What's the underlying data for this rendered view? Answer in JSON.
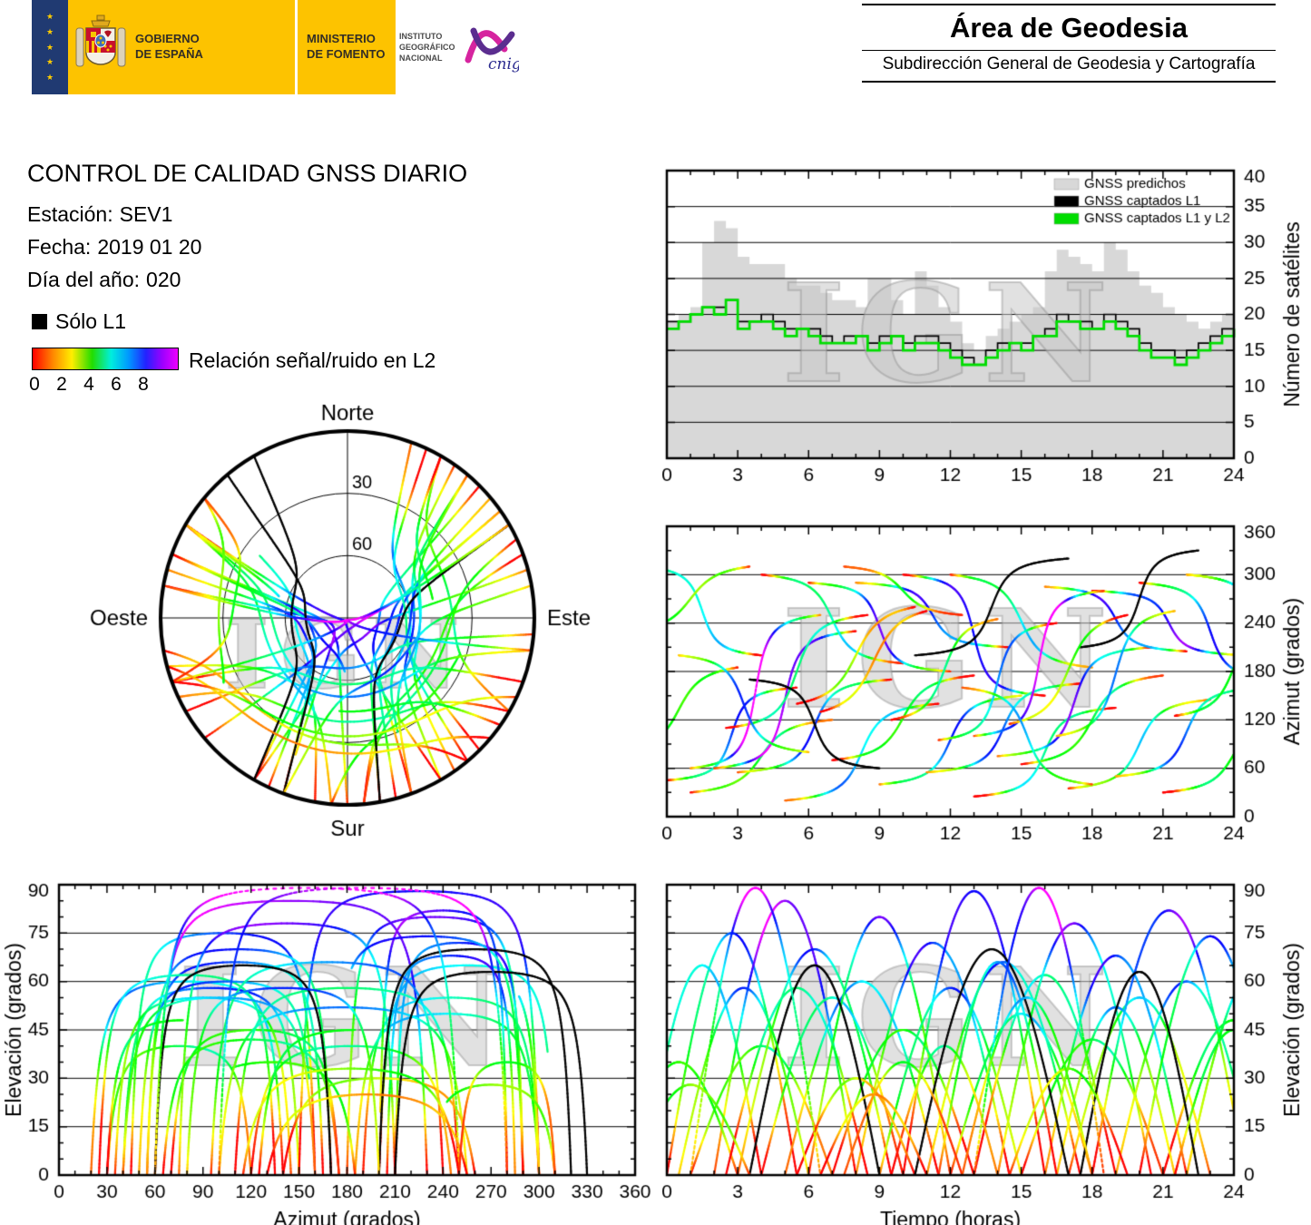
{
  "banner": {
    "eu_stars": "★\n★\n★\n★\n★",
    "gobierno_label": "GOBIERNO\nDE ESPAÑA",
    "ministerio_label": "MINISTERIO\nDE FOMENTO",
    "instituto_label": "INSTITUTO\nGEOGRÁFICO\nNACIONAL",
    "cnig_label": "cnig"
  },
  "area_header": {
    "title": "Área de Geodesia",
    "subtitle": "Subdirección General de Geodesia y Cartografía"
  },
  "report": {
    "title": "CONTROL DE CALIDAD GNSS DIARIO",
    "station_label": "Estación:",
    "station_value": "SEV1",
    "date_label": "Fecha:",
    "date_value": "2019 01 20",
    "doy_label": "Día del año:",
    "doy_value": "020"
  },
  "legend": {
    "solo_l1": "Sólo L1",
    "snr_label": "Relación señal/ruido en L2",
    "snr_ticks": [
      0,
      2,
      4,
      6,
      8
    ]
  },
  "chart_data": {
    "watermark": "IGN",
    "snr_colormap": {
      "min": 0,
      "max": 9,
      "hue_start": 0,
      "hue_end": 300
    },
    "charts": {
      "sat_count": {
        "type": "step-area",
        "ylabel": "Número de satélites",
        "xlim": [
          0,
          24
        ],
        "ylim": [
          0,
          40
        ],
        "xticks": [
          0,
          3,
          6,
          9,
          12,
          15,
          18,
          21,
          24
        ],
        "yticks": [
          0,
          5,
          10,
          15,
          20,
          25,
          30,
          35,
          40
        ],
        "grid_y_step": 5,
        "sample_hours": 0.5,
        "legend": [
          {
            "label": "GNSS predichos",
            "color": "#d8d8d8"
          },
          {
            "label": "GNSS captados L1",
            "color": "#000000"
          },
          {
            "label": "GNSS captados L1 y L2",
            "color": "#00dd00"
          }
        ],
        "series": {
          "predichos": [
            19,
            20,
            21,
            30,
            33,
            32,
            28,
            27,
            27,
            27,
            25,
            24,
            24,
            23,
            22,
            22,
            21,
            25,
            25,
            22,
            20,
            26,
            24,
            21,
            19,
            16,
            15,
            17,
            18,
            19,
            20,
            21,
            26,
            29,
            28,
            27,
            26,
            30,
            29,
            26,
            24,
            23,
            21,
            20,
            19,
            18,
            19,
            20,
            20
          ],
          "l1": [
            19,
            19,
            20,
            21,
            21,
            22,
            19,
            19,
            20,
            19,
            18,
            18,
            18,
            17,
            16,
            17,
            17,
            16,
            17,
            17,
            16,
            17,
            17,
            16,
            15,
            14,
            13,
            15,
            16,
            16,
            16,
            17,
            18,
            20,
            19,
            19,
            18,
            20,
            19,
            18,
            16,
            15,
            15,
            14,
            15,
            16,
            17,
            18,
            19
          ],
          "l1l2": [
            18,
            19,
            20,
            21,
            20,
            22,
            18,
            19,
            19,
            18,
            17,
            18,
            17,
            16,
            16,
            16,
            17,
            15,
            16,
            17,
            15,
            16,
            16,
            15,
            14,
            13,
            13,
            14,
            15,
            16,
            15,
            17,
            17,
            19,
            19,
            18,
            18,
            19,
            18,
            17,
            15,
            14,
            14,
            13,
            14,
            15,
            16,
            17,
            18
          ]
        }
      },
      "skyplot": {
        "type": "polar-tracks",
        "compass": {
          "n": "Norte",
          "s": "Sur",
          "e": "Este",
          "w": "Oeste"
        },
        "elevation_rings": [
          30,
          60
        ]
      },
      "azimuth_time": {
        "type": "satellite-tracks",
        "ylabel": "Azimut (grados)",
        "xlim": [
          0,
          24
        ],
        "ylim": [
          0,
          360
        ],
        "xticks": [
          0,
          3,
          6,
          9,
          12,
          15,
          18,
          21,
          24
        ],
        "yticks": [
          0,
          60,
          120,
          180,
          240,
          300,
          360
        ],
        "grid_y_step": 60
      },
      "elev_azimuth": {
        "type": "satellite-tracks",
        "xlabel": "Azimut (grados)",
        "ylabel": "Elevación (grados)",
        "xlim": [
          0,
          360
        ],
        "ylim": [
          0,
          90
        ],
        "xticks": [
          0,
          30,
          60,
          90,
          120,
          150,
          180,
          210,
          240,
          270,
          300,
          330,
          360
        ],
        "yticks": [
          0,
          15,
          30,
          45,
          60,
          75,
          90
        ],
        "grid_y_step": 15
      },
      "elev_time": {
        "type": "satellite-tracks",
        "xlabel": "Tiempo (horas)",
        "ylabel": "Elevación (grados)",
        "xlim": [
          0,
          24
        ],
        "ylim": [
          0,
          90
        ],
        "xticks": [
          0,
          3,
          6,
          9,
          12,
          15,
          18,
          21,
          24
        ],
        "yticks": [
          0,
          15,
          30,
          45,
          60,
          75,
          90
        ],
        "grid_y_step": 15
      }
    },
    "satellite_tracks": [
      [
        0,
        5.5,
        45,
        160,
        75,
        "snr"
      ],
      [
        -1,
        4,
        310,
        200,
        65,
        "snr"
      ],
      [
        1,
        7,
        30,
        120,
        40,
        "snr"
      ],
      [
        2,
        8,
        60,
        230,
        85,
        "snr"
      ],
      [
        3,
        9.5,
        55,
        170,
        70,
        "snr"
      ],
      [
        4,
        10,
        300,
        190,
        55,
        "snr"
      ],
      [
        5,
        11.5,
        20,
        140,
        60,
        "snr"
      ],
      [
        6,
        12,
        290,
        180,
        80,
        "snr"
      ],
      [
        7,
        13,
        70,
        175,
        45,
        "snr"
      ],
      [
        8,
        14.5,
        290,
        210,
        72,
        "snr"
      ],
      [
        9,
        15,
        40,
        150,
        58,
        "snr"
      ],
      [
        10,
        16,
        300,
        150,
        88,
        "snr"
      ],
      [
        11,
        17.5,
        55,
        165,
        66,
        "snr"
      ],
      [
        12,
        18,
        300,
        185,
        50,
        "snr"
      ],
      [
        13,
        19,
        25,
        135,
        62,
        "snr"
      ],
      [
        14,
        20.5,
        75,
        210,
        78,
        "snr"
      ],
      [
        15,
        21,
        65,
        175,
        42,
        "snr"
      ],
      [
        16,
        22,
        285,
        205,
        68,
        "snr"
      ],
      [
        17,
        23,
        35,
        145,
        55,
        "snr"
      ],
      [
        18,
        24.5,
        280,
        200,
        82,
        "snr"
      ],
      [
        19,
        25,
        50,
        160,
        60,
        "snr"
      ],
      [
        20,
        26,
        290,
        170,
        74,
        "snr"
      ],
      [
        21,
        27,
        30,
        125,
        48,
        "snr"
      ],
      [
        22,
        28,
        300,
        195,
        64,
        "snr"
      ],
      [
        -2,
        3,
        80,
        185,
        35,
        "snr"
      ],
      [
        2.5,
        8.5,
        110,
        250,
        58,
        "snr"
      ],
      [
        9.5,
        14,
        120,
        245,
        40,
        "snr"
      ],
      [
        16.5,
        21.5,
        100,
        255,
        52,
        "snr"
      ],
      [
        5.5,
        10.5,
        140,
        260,
        30,
        "snr"
      ],
      [
        11.5,
        16.5,
        95,
        240,
        66,
        "snr"
      ],
      [
        10.5,
        17,
        200,
        320,
        70,
        "l1"
      ],
      [
        3.5,
        9,
        170,
        60,
        65,
        "l1"
      ],
      [
        17.5,
        22.5,
        210,
        330,
        63,
        "l1"
      ],
      [
        1,
        6.5,
        60,
        250,
        89,
        "zenith"
      ],
      [
        13,
        18.5,
        100,
        280,
        89,
        "zenith"
      ],
      [
        6.5,
        11,
        130,
        255,
        25,
        "snr"
      ],
      [
        14.5,
        19.5,
        115,
        250,
        33,
        "snr"
      ],
      [
        21.5,
        26.5,
        125,
        245,
        45,
        "snr"
      ],
      [
        -1.5,
        3.5,
        230,
        310,
        28,
        "snr"
      ],
      [
        7.5,
        12.5,
        310,
        250,
        35,
        "snr"
      ],
      [
        12.5,
        18,
        160,
        40,
        55,
        "snr"
      ],
      [
        0.5,
        6,
        200,
        80,
        58,
        "snr"
      ]
    ]
  }
}
